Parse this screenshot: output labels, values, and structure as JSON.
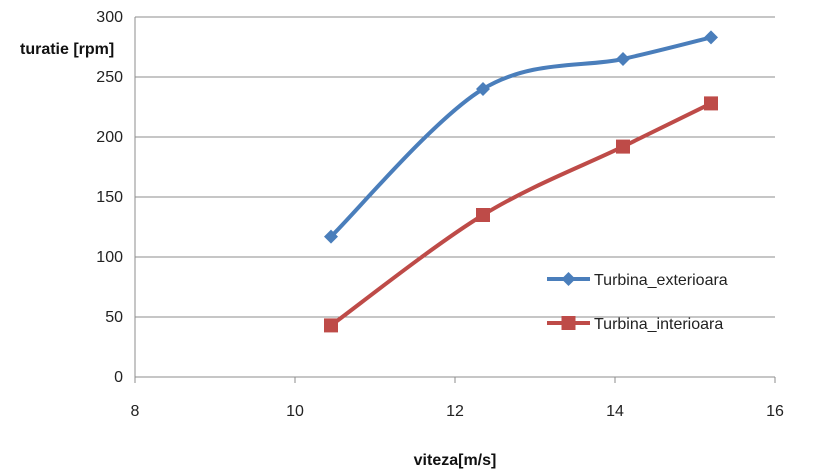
{
  "chart_data": {
    "type": "line",
    "title": "",
    "xlabel": "viteza[m/s]",
    "ylabel": "turatie [rpm]",
    "xlim": [
      8,
      16
    ],
    "ylim": [
      0,
      300
    ],
    "xticks": [
      8,
      10,
      12,
      14,
      16
    ],
    "yticks": [
      0,
      50,
      100,
      150,
      200,
      250,
      300
    ],
    "grid": "horizontal",
    "legend_position": "right",
    "smoothed": true,
    "series": [
      {
        "name": "Turbina_exterioara",
        "color": "#4a7ebb",
        "marker": "diamond",
        "x": [
          10.45,
          12.35,
          14.1,
          15.2
        ],
        "y": [
          117,
          240,
          265,
          283
        ]
      },
      {
        "name": "Turbina_interioara",
        "color": "#be4b48",
        "marker": "square",
        "x": [
          10.45,
          12.35,
          14.1,
          15.2
        ],
        "y": [
          43,
          135,
          192,
          228
        ]
      }
    ]
  }
}
